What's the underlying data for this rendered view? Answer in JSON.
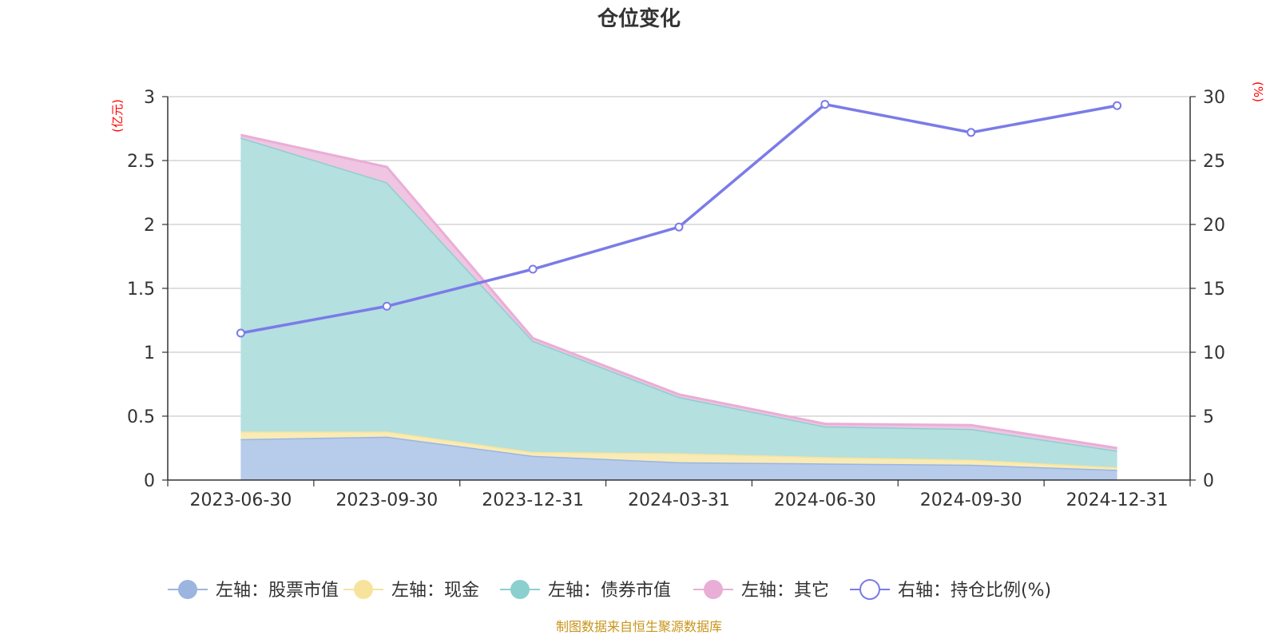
{
  "chart_data": {
    "type": "area",
    "title": "仓位变化",
    "categories": [
      "2023-06-30",
      "2023-09-30",
      "2023-12-31",
      "2024-03-31",
      "2024-06-30",
      "2024-09-30",
      "2024-12-31"
    ],
    "left_axis": {
      "unit": "(亿元)",
      "ylim": [
        0,
        3
      ],
      "ticks": [
        "0",
        "0.5",
        "1",
        "1.5",
        "2",
        "2.5",
        "3"
      ]
    },
    "right_axis": {
      "unit": "(%)",
      "ylim": [
        0,
        30
      ],
      "ticks": [
        "0",
        "5",
        "10",
        "15",
        "20",
        "25",
        "30"
      ]
    },
    "stacked_series": [
      {
        "name": "股票市值",
        "legend": "左轴：股票市值",
        "color": "#9bb5e0",
        "fill": "#b7cbeb",
        "values": [
          0.32,
          0.34,
          0.19,
          0.14,
          0.13,
          0.12,
          0.08
        ]
      },
      {
        "name": "现金",
        "legend": "左轴：现金",
        "color": "#f7e39c",
        "fill": "#f8ebb6",
        "values": [
          0.06,
          0.04,
          0.03,
          0.07,
          0.05,
          0.04,
          0.02
        ]
      },
      {
        "name": "债券市值",
        "legend": "左轴：债券市值",
        "color": "#8ccfcf",
        "fill": "#b4e0e0",
        "values": [
          2.3,
          1.95,
          0.87,
          0.44,
          0.24,
          0.24,
          0.13
        ]
      },
      {
        "name": "其它",
        "legend": "左轴：其它",
        "color": "#e9aed6",
        "fill": "#efc5e2",
        "values": [
          0.02,
          0.12,
          0.02,
          0.02,
          0.02,
          0.03,
          0.02
        ]
      }
    ],
    "line_series": {
      "name": "持仓比例(%)",
      "legend": "右轴：持仓比例(%)",
      "color": "#7b7be8",
      "values": [
        11.5,
        13.6,
        16.5,
        19.8,
        29.4,
        27.2,
        29.3
      ]
    }
  },
  "source": "制图数据来自恒生聚源数据库"
}
